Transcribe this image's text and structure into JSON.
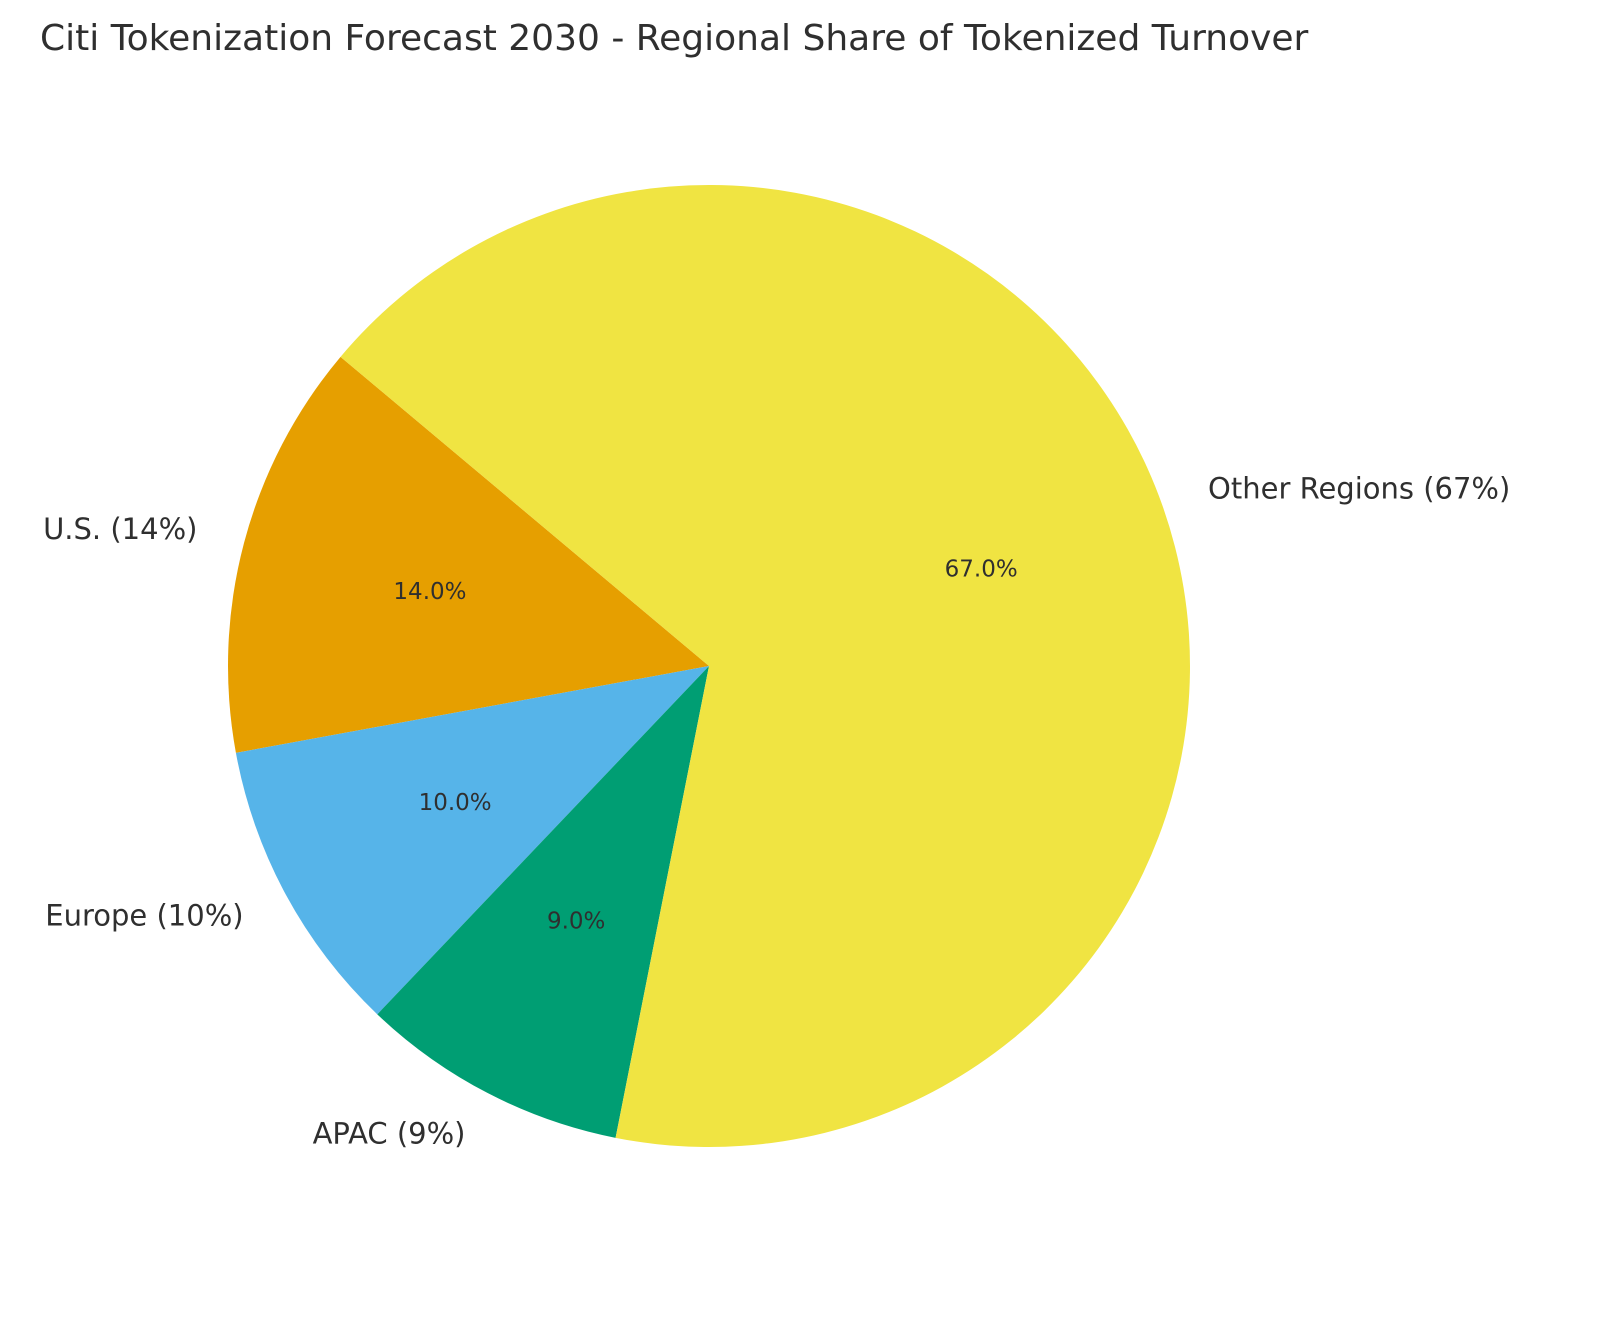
{
  "chart_data": {
    "type": "pie",
    "title": "Citi Tokenization Forecast 2030 - Regional Share of Tokenized Turnover",
    "slices": [
      {
        "label": "U.S. (14%)",
        "value": 14,
        "pct_label": "14.0%",
        "color": "#E69F00"
      },
      {
        "label": "Europe (10%)",
        "value": 10,
        "pct_label": "10.0%",
        "color": "#56B4E9"
      },
      {
        "label": "APAC (9%)",
        "value": 9,
        "pct_label": "9.0%",
        "color": "#009E73"
      },
      {
        "label": "Other Regions (67%)",
        "value": 67,
        "pct_label": "67.0%",
        "color": "#F0E442"
      }
    ],
    "start_angle_deg": 140,
    "direction": "counterclockwise"
  }
}
